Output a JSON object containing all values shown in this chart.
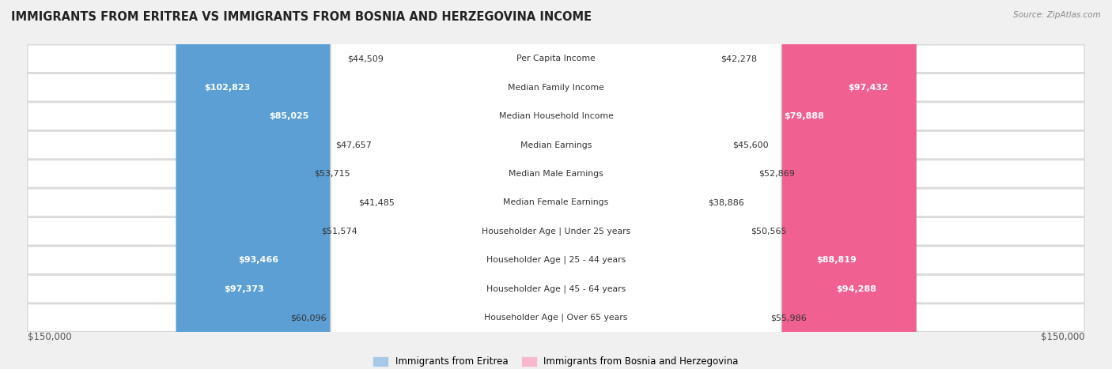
{
  "title": "IMMIGRANTS FROM ERITREA VS IMMIGRANTS FROM BOSNIA AND HERZEGOVINA INCOME",
  "source": "Source: ZipAtlas.com",
  "categories": [
    "Per Capita Income",
    "Median Family Income",
    "Median Household Income",
    "Median Earnings",
    "Median Male Earnings",
    "Median Female Earnings",
    "Householder Age | Under 25 years",
    "Householder Age | 25 - 44 years",
    "Householder Age | 45 - 64 years",
    "Householder Age | Over 65 years"
  ],
  "eritrea_values": [
    44509,
    102823,
    85025,
    47657,
    53715,
    41485,
    51574,
    93466,
    97373,
    60096
  ],
  "bosnia_values": [
    42278,
    97432,
    79888,
    45600,
    52869,
    38886,
    50565,
    88819,
    94288,
    55986
  ],
  "eritrea_color_light": "#a8c8e8",
  "eritrea_color_dark": "#5b9fd4",
  "bosnia_color_light": "#f7b8cc",
  "bosnia_color_dark": "#f06090",
  "large_threshold": 65000,
  "max_value": 150000,
  "background_color": "#f0f0f0",
  "row_bg_color": "#ffffff",
  "row_border_color": "#d8d8d8",
  "legend_eritrea": "Immigrants from Eritrea",
  "legend_bosnia": "Immigrants from Bosnia and Herzegovina"
}
